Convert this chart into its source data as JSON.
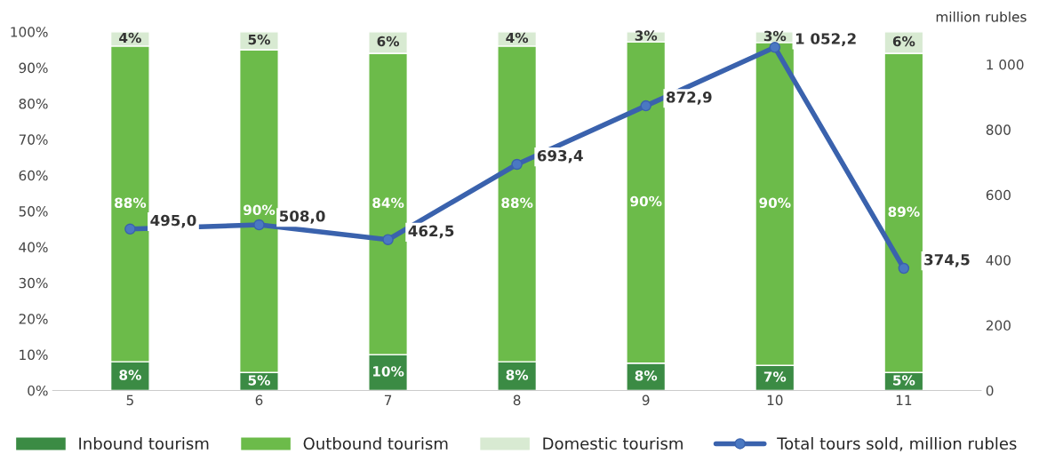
{
  "chart_data": {
    "type": "bar",
    "stacked": true,
    "categories": [
      "5",
      "6",
      "7",
      "8",
      "9",
      "10",
      "11"
    ],
    "series": [
      {
        "name": "Inbound tourism",
        "color": "#3b8b44",
        "values": [
          8,
          5,
          10,
          8,
          7.6,
          7,
          5
        ],
        "value_labels": [
          "8%",
          "5%",
          "10%",
          "8%",
          "8%",
          "7%",
          "5%"
        ]
      },
      {
        "name": "Outbound tourism",
        "color": "#6cbb4a",
        "values": [
          88,
          90,
          84,
          88,
          89.6,
          90,
          89
        ],
        "value_labels": [
          "88%",
          "90%",
          "84%",
          "88%",
          "90%",
          "90%",
          "89%"
        ]
      },
      {
        "name": "Domestic tourism",
        "color": "#d8ead2",
        "values": [
          4,
          5,
          6,
          4,
          2.8,
          3,
          6
        ],
        "value_labels": [
          "4%",
          "5%",
          "6%",
          "4%",
          "3%",
          "3%",
          "6%"
        ]
      },
      {
        "name": "Total tours sold, million rubles",
        "type": "line",
        "axis": "y2",
        "color": "#3a62ad",
        "marker": "circle",
        "values": [
          495.0,
          508.0,
          462.5,
          693.4,
          872.9,
          1052.2,
          374.5
        ],
        "value_labels": [
          "495,0",
          "508,0",
          "462,5",
          "693,4",
          "872,9",
          "1 052,2",
          "374,5"
        ]
      }
    ],
    "ylim": [
      0,
      100
    ],
    "yticks": [
      {
        "value": 0,
        "label": "0%"
      },
      {
        "value": 10,
        "label": "10%"
      },
      {
        "value": 20,
        "label": "20%"
      },
      {
        "value": 30,
        "label": "30%"
      },
      {
        "value": 40,
        "label": "40%"
      },
      {
        "value": 50,
        "label": "50%"
      },
      {
        "value": 60,
        "label": "60%"
      },
      {
        "value": 70,
        "label": "70%"
      },
      {
        "value": 80,
        "label": "80%"
      },
      {
        "value": 90,
        "label": "90%"
      },
      {
        "value": 100,
        "label": "100%"
      }
    ],
    "y2lim": [
      0,
      1100
    ],
    "y2ticks": [
      0,
      200,
      400,
      600,
      800,
      {
        "value": 1000,
        "label": "1 000"
      }
    ],
    "y2label": "million rubles",
    "legend": "bottom",
    "grid": false
  }
}
